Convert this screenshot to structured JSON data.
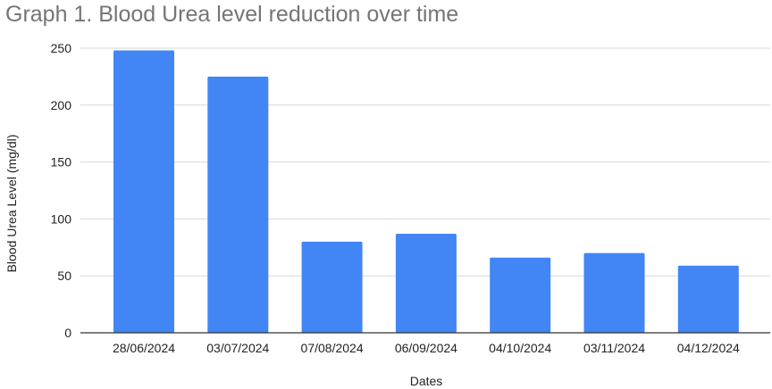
{
  "chart_data": {
    "type": "bar",
    "title": "Graph 1. Blood Urea level reduction over time",
    "xlabel": "Dates",
    "ylabel": "Blood Urea Level  (mg/dl)",
    "categories": [
      "28/06/2024",
      "03/07/2024",
      "07/08/2024",
      "06/09/2024",
      "04/10/2024",
      "03/11/2024",
      "04/12/2024"
    ],
    "values": [
      248,
      225,
      80,
      87,
      66,
      70,
      59
    ],
    "ylim": [
      0,
      250
    ],
    "yticks": [
      0,
      50,
      100,
      150,
      200,
      250
    ],
    "grid": true,
    "legend": "none",
    "colors": {
      "bar": "#4285f4",
      "grid": "#d9d9d9",
      "axis": "#333333",
      "title": "#757575"
    }
  }
}
